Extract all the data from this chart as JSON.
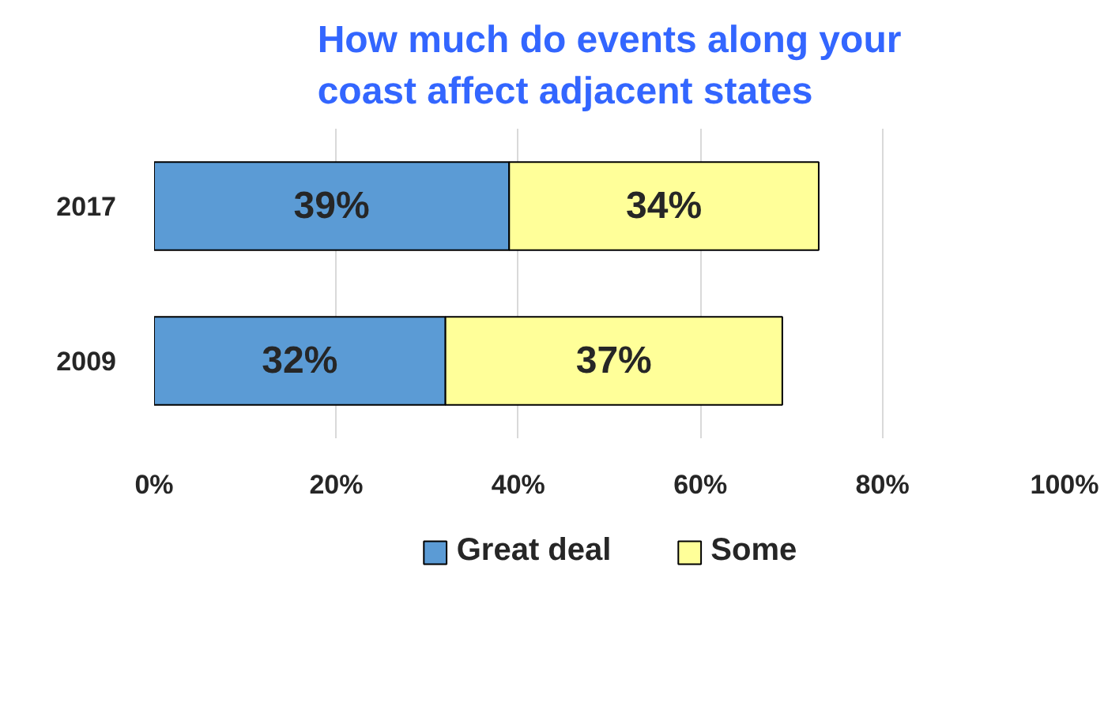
{
  "chart_data": {
    "type": "bar",
    "orientation": "horizontal",
    "stacked": true,
    "title": "How much do events along your\ncoast affect adjacent states",
    "categories": [
      "2017",
      "2009"
    ],
    "series": [
      {
        "name": "Great deal",
        "color": "#5b9bd5",
        "values": [
          39,
          32
        ],
        "value_labels": [
          "39%",
          "32%"
        ]
      },
      {
        "name": "Some",
        "color": "#ffff99",
        "values": [
          34,
          37
        ],
        "value_labels": [
          "34%",
          "37%"
        ]
      }
    ],
    "xlim": [
      0,
      100
    ],
    "xticks": [
      {
        "value": 0,
        "label": "0%"
      },
      {
        "value": 20,
        "label": "20%"
      },
      {
        "value": 40,
        "label": "40%"
      },
      {
        "value": 60,
        "label": "60%"
      },
      {
        "value": 80,
        "label": "80%"
      },
      {
        "value": 100,
        "label": "100%"
      }
    ],
    "grid": "x",
    "legend": "bottom"
  }
}
